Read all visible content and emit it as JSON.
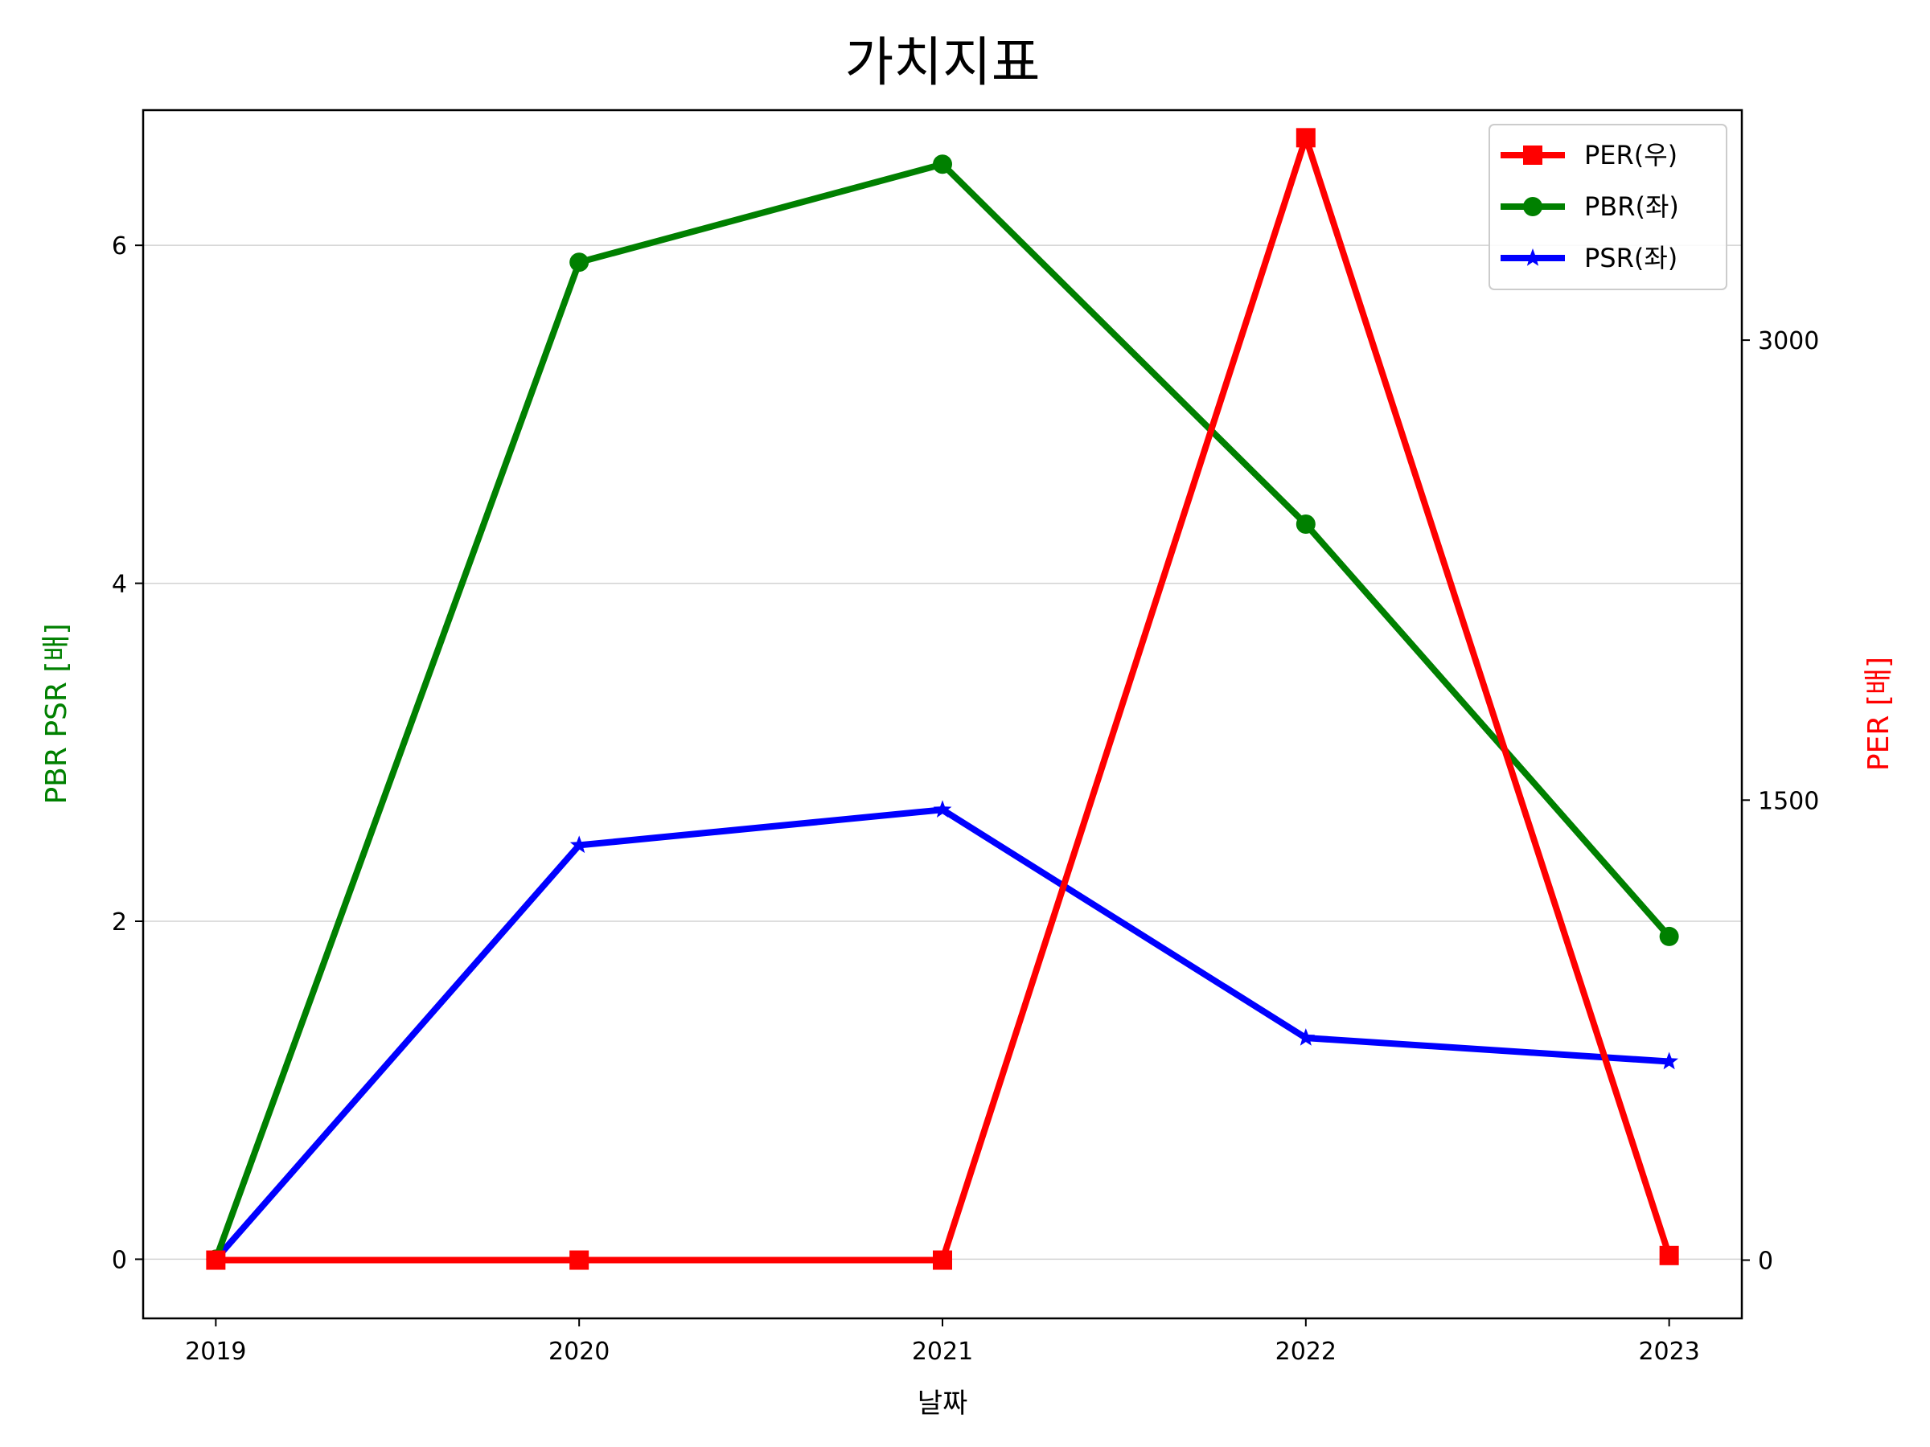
{
  "chart_data": {
    "type": "line",
    "title": "가치지표",
    "xlabel": "날짜",
    "ylabel_left": "PBR PSR [배]",
    "ylabel_right": "PER [배]",
    "x": [
      "2019",
      "2020",
      "2021",
      "2022",
      "2023"
    ],
    "xlim": [
      2018.8,
      2023.2
    ],
    "ylim_left": [
      -0.35,
      6.8
    ],
    "ylim_right": [
      -190,
      3750
    ],
    "yticks_left": [
      0,
      2,
      4,
      6
    ],
    "yticks_right": [
      0,
      1500,
      3000
    ],
    "grid": "horizontal (left axis)",
    "legend_position": "top-right",
    "series": [
      {
        "name": "PER(우)",
        "axis": "right",
        "color": "#ff0000",
        "marker": "square",
        "values": [
          0,
          0,
          0,
          3660,
          15
        ]
      },
      {
        "name": "PBR(좌)",
        "axis": "left",
        "color": "#008000",
        "marker": "circle",
        "values": [
          0,
          5.9,
          6.48,
          4.35,
          1.91
        ]
      },
      {
        "name": "PSR(좌)",
        "axis": "left",
        "color": "#0000ff",
        "marker": "star",
        "values": [
          0,
          2.45,
          2.66,
          1.31,
          1.17
        ]
      }
    ],
    "colors": {
      "left_axis_label": "#008000",
      "right_axis_label": "#ff0000",
      "grid": "#d3d3d3"
    }
  }
}
